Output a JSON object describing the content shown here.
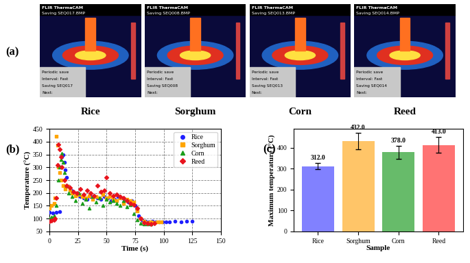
{
  "images": {
    "panel_label": "(a)",
    "items": [
      {
        "name": "Rice",
        "header": "FLIR ThermaCAM",
        "file": "Saving SEQ017.BMP",
        "box": [
          "Periodic save",
          "Interval: Fast",
          "Saving SEQ017",
          "Next:"
        ]
      },
      {
        "name": "Sorghum",
        "header": "FLIR ThermaCAM",
        "file": "Saving SEQ008.BMP",
        "box": [
          "Periodic save",
          "Interval: Fast",
          "Saving SEQ008",
          "Next:"
        ]
      },
      {
        "name": "Corn",
        "header": "FLIR ThermaCAM",
        "file": "Saving SEQ013.BMP",
        "box": [
          "Periodic save",
          "Interval: Fast",
          "Saving SEQ013",
          "Next:"
        ]
      },
      {
        "name": "Reed",
        "header": "FLIR ThermaCAM",
        "file": "Saving SEQ014.BMP",
        "box": [
          "Periodic save",
          "Interval: Fast",
          "Saving SEQ014",
          "Next:"
        ]
      }
    ]
  },
  "chart_data": [
    {
      "type": "scatter",
      "title": "(b)",
      "x_label": "Time (s)",
      "y_label": "Temperature (°C)",
      "xlim": [
        0,
        150
      ],
      "xticks": [
        0,
        25,
        50,
        75,
        100,
        125,
        150
      ],
      "ylim": [
        50,
        450
      ],
      "yticks": [
        50,
        100,
        150,
        200,
        250,
        300,
        350,
        400,
        450
      ],
      "grid": true,
      "legend": "upper right",
      "series": [
        {
          "name": "Rice",
          "color": "#1f1fff",
          "marker": "circle",
          "x": [
            0,
            3,
            6,
            9,
            10,
            11,
            12,
            13,
            14,
            15,
            17,
            19,
            21,
            24,
            27,
            30,
            33,
            36,
            39,
            42,
            45,
            48,
            51,
            54,
            57,
            60,
            63,
            66,
            69,
            72,
            75,
            78,
            81,
            84,
            87,
            90,
            93,
            96,
            99,
            102,
            105,
            110,
            115,
            120,
            125
          ],
          "values": [
            125,
            123,
            125,
            128,
            300,
            340,
            350,
            320,
            290,
            260,
            225,
            210,
            205,
            195,
            185,
            180,
            175,
            185,
            190,
            180,
            175,
            185,
            180,
            170,
            175,
            185,
            180,
            175,
            165,
            170,
            150,
            110,
            95,
            90,
            88,
            90,
            87,
            86,
            88,
            87,
            88,
            89,
            88,
            89,
            90
          ]
        },
        {
          "name": "Sorghum",
          "color": "#ffa500",
          "marker": "square",
          "x": [
            0,
            2,
            4,
            5,
            6,
            7,
            8,
            9,
            10,
            12,
            14,
            16,
            18,
            20,
            23,
            26,
            29,
            32,
            35,
            38,
            41,
            44,
            47,
            50,
            53,
            56,
            59,
            62,
            65,
            68,
            71,
            74,
            77,
            80,
            83,
            86,
            89,
            92,
            95,
            98
          ],
          "values": [
            140,
            150,
            160,
            180,
            420,
            385,
            300,
            280,
            250,
            230,
            215,
            225,
            210,
            200,
            190,
            195,
            185,
            180,
            190,
            175,
            185,
            180,
            195,
            180,
            185,
            175,
            170,
            180,
            160,
            175,
            170,
            165,
            130,
            100,
            90,
            85,
            88,
            85,
            87,
            88
          ]
        },
        {
          "name": "Corn",
          "color": "#1a9e1a",
          "marker": "triangle",
          "x": [
            0,
            2,
            4,
            6,
            8,
            9,
            10,
            11,
            12,
            13,
            15,
            17,
            20,
            23,
            26,
            29,
            32,
            35,
            38,
            41,
            44,
            47,
            50,
            53,
            56,
            59,
            62,
            65,
            68,
            71,
            74,
            77,
            80,
            83,
            86,
            89
          ],
          "values": [
            100,
            105,
            110,
            150,
            250,
            300,
            330,
            355,
            320,
            280,
            230,
            200,
            185,
            170,
            200,
            160,
            175,
            140,
            185,
            165,
            180,
            150,
            175,
            165,
            170,
            160,
            150,
            170,
            145,
            155,
            120,
            95,
            82,
            80,
            80,
            80
          ]
        },
        {
          "name": "Reed",
          "color": "#e8141e",
          "marker": "diamond",
          "x": [
            0,
            2,
            4,
            5,
            6,
            7,
            8,
            9,
            10,
            11,
            13,
            15,
            18,
            21,
            24,
            27,
            30,
            33,
            36,
            39,
            42,
            45,
            48,
            50,
            53,
            56,
            59,
            62,
            65,
            68,
            71,
            74,
            77,
            80,
            83,
            86,
            89,
            92
          ],
          "values": [
            90,
            92,
            95,
            100,
            180,
            310,
            390,
            370,
            340,
            300,
            250,
            230,
            220,
            205,
            200,
            215,
            195,
            210,
            200,
            190,
            230,
            205,
            210,
            260,
            200,
            190,
            195,
            185,
            180,
            170,
            160,
            155,
            140,
            100,
            85,
            82,
            80,
            82
          ]
        }
      ]
    },
    {
      "type": "bar",
      "title": "(c)",
      "x_label": "Sample",
      "y_label": "Maximum temperature (°C)",
      "categories": [
        "Rice",
        "Sorghum",
        "Corn",
        "Reed"
      ],
      "values": [
        312,
        432,
        378,
        413
      ],
      "value_labels": [
        "312.0",
        "432.0",
        "378.0",
        "413.0"
      ],
      "errors": [
        15,
        38,
        32,
        38
      ],
      "colors": [
        "#6b6bff",
        "#ffbb4d",
        "#4caf50",
        "#ff5a5a"
      ],
      "ylim": [
        0,
        490
      ],
      "yticks": [
        0,
        100,
        200,
        300,
        400
      ],
      "data_labels": true
    }
  ]
}
